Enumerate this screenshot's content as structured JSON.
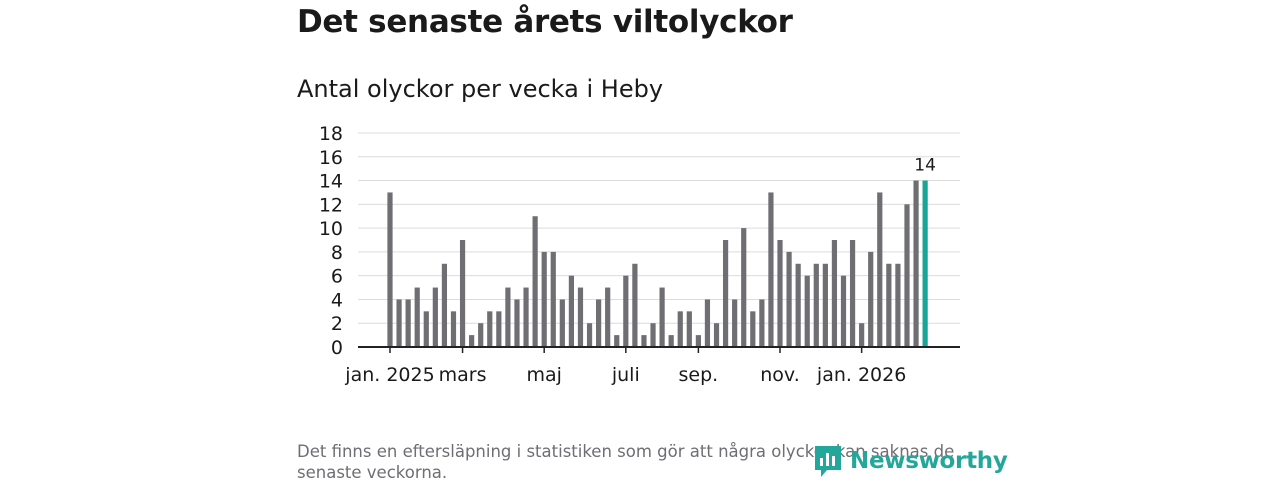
{
  "title": "Det senaste årets viltolyckor",
  "subtitle": "Antal olyckor per vecka i Heby",
  "footnote": "Det finns en eftersläpning i statistiken som gör att några olyckor kan saknas de senaste veckorna.",
  "logo_text": "Newsworthy",
  "colors": {
    "bar": "#6f6e73",
    "highlight": "#1aa696",
    "grid": "#dcdcdc",
    "axis": "#222222"
  },
  "chart_data": {
    "type": "bar",
    "title": "Antal olyckor per vecka i Heby",
    "xlabel": "",
    "ylabel": "",
    "ylim": [
      0,
      18
    ],
    "yticks": [
      "0",
      "2",
      "4",
      "6",
      "8",
      "10",
      "12",
      "14",
      "16",
      "18"
    ],
    "xtick_labels": [
      {
        "label": "jan. 2025",
        "week_index": 0
      },
      {
        "label": "mars",
        "week_index": 8
      },
      {
        "label": "maj",
        "week_index": 17
      },
      {
        "label": "juli",
        "week_index": 26
      },
      {
        "label": "sep.",
        "week_index": 34
      },
      {
        "label": "nov.",
        "week_index": 43
      },
      {
        "label": "jan. 2026",
        "week_index": 52
      }
    ],
    "values": [
      13,
      4,
      4,
      5,
      3,
      5,
      7,
      3,
      9,
      1,
      2,
      3,
      3,
      5,
      4,
      5,
      11,
      8,
      8,
      4,
      6,
      5,
      2,
      4,
      5,
      1,
      6,
      7,
      1,
      2,
      5,
      1,
      3,
      3,
      1,
      4,
      2,
      9,
      4,
      10,
      3,
      4,
      13,
      9,
      8,
      7,
      6,
      7,
      7,
      9,
      6,
      9,
      2,
      8,
      13,
      7,
      7,
      12,
      14,
      14
    ],
    "highlight_index": 59,
    "highlight_label": "14"
  }
}
